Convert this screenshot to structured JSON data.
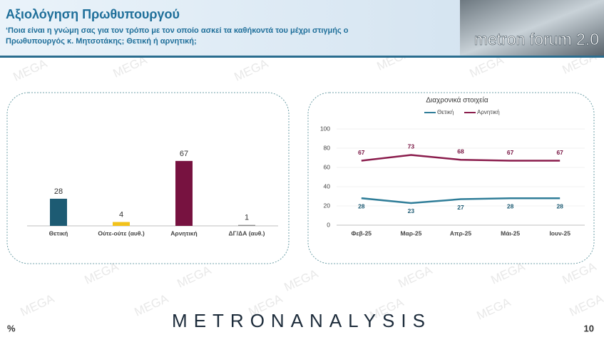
{
  "header": {
    "title": "Αξιολόγηση Πρωθυπουργού",
    "subtitle_lines": [
      "‘Ποια είναι η γνώμη σας για τον τρόπο με τον οποίο ασκεί τα καθήκοντά του μέχρι στιγμής ο",
      "Πρωθυπουργός κ. Μητσοτάκης; Θετική ή αρνητική;"
    ],
    "logo": "metron forum 2.0"
  },
  "watermark": "MEGA",
  "chart_data": [
    {
      "type": "bar",
      "categories": [
        "Θετική",
        "Ούτε-ούτε (αυθ.)",
        "Αρνητική",
        "ΔΓ/ΔΑ (αυθ.)"
      ],
      "values": [
        28,
        4,
        67,
        1
      ],
      "colors": [
        "#1d5b73",
        "#f2c21b",
        "#771240",
        "#8c8c8c"
      ]
    },
    {
      "type": "line",
      "title": "Διαχρονικά στοιχεία",
      "categories": [
        "Φεβ-25",
        "Μαρ-25",
        "Απρ-25",
        "Μάι-25",
        "Ιουν-25"
      ],
      "series": [
        {
          "name": "Θετική",
          "color": "#2f7d98",
          "label_color": "#1d5b73",
          "values": [
            28,
            23,
            27,
            28,
            28
          ]
        },
        {
          "name": "Αρνητική",
          "color": "#8a1c4c",
          "label_color": "#771240",
          "values": [
            67,
            73,
            68,
            67,
            67
          ]
        }
      ],
      "ylim": [
        0,
        100
      ],
      "yticks": [
        0,
        20,
        40,
        60,
        80,
        100
      ],
      "grid": true,
      "legend": "top"
    }
  ],
  "footer": {
    "unit": "%",
    "brand": "METRONANALYSIS",
    "page": "10"
  }
}
